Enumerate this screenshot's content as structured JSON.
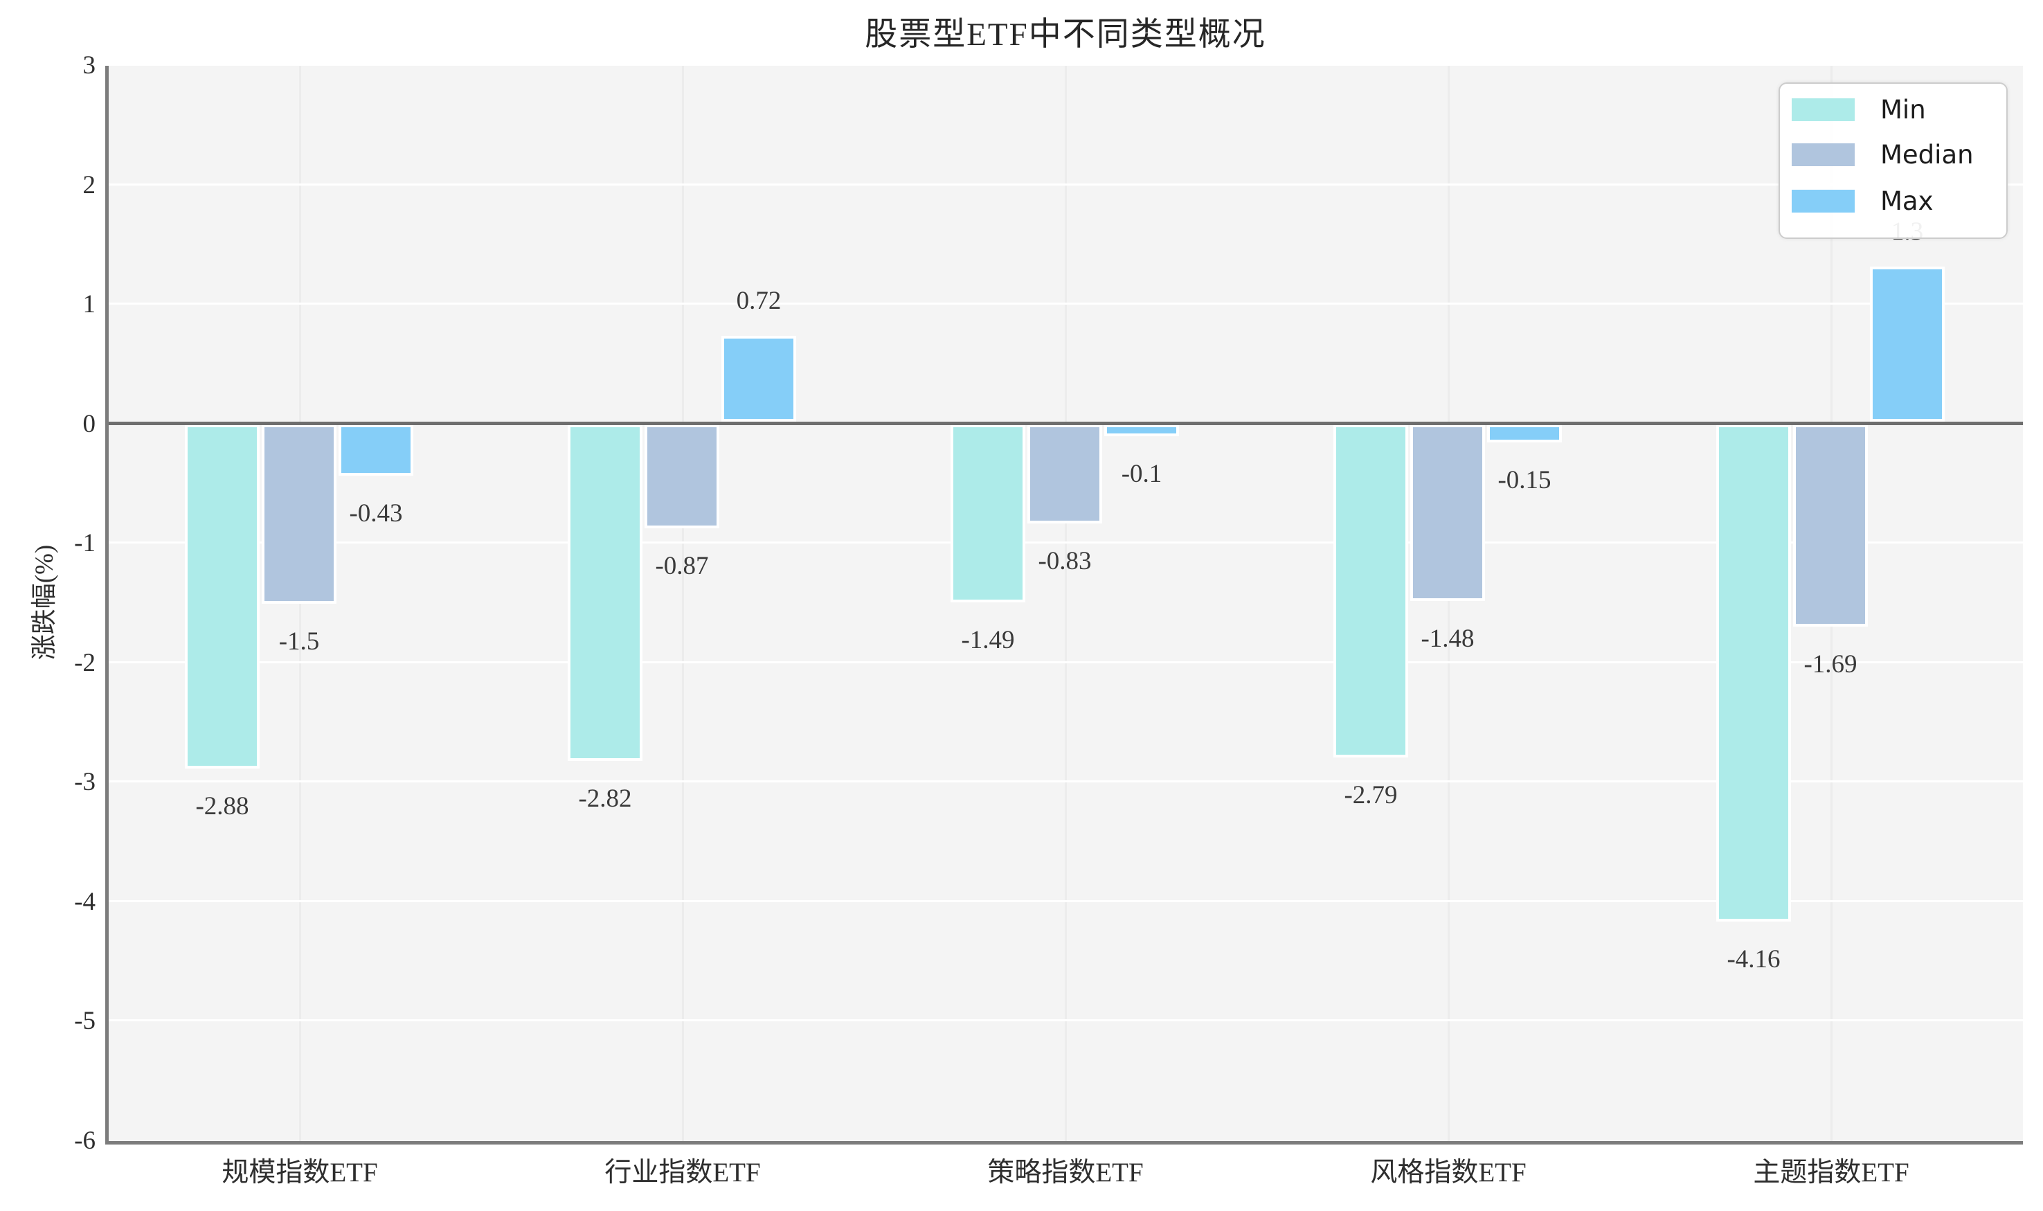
{
  "chart_data": {
    "type": "bar",
    "title": "股票型ETF中不同类型概况",
    "xlabel": "",
    "ylabel": "涨跌幅(%)",
    "categories": [
      "规模指数ETF",
      "行业指数ETF",
      "策略指数ETF",
      "风格指数ETF",
      "主题指数ETF"
    ],
    "series": [
      {
        "name": "Min",
        "color": "#adebe9",
        "values": [
          -2.88,
          -2.82,
          -1.49,
          -2.79,
          -4.16
        ]
      },
      {
        "name": "Median",
        "color": "#b0c5de",
        "values": [
          -1.5,
          -0.87,
          -0.83,
          -1.48,
          -1.69
        ]
      },
      {
        "name": "Max",
        "color": "#85cef8",
        "values": [
          -0.43,
          0.72,
          -0.1,
          -0.15,
          1.3
        ]
      }
    ],
    "ylim": [
      -6,
      3
    ],
    "yticks": [
      "3",
      "2",
      "1",
      "0",
      "-1",
      "-2",
      "-3",
      "-4",
      "-5",
      "-6"
    ],
    "grid": true,
    "legend_position": "upper right",
    "plot_background": "#f4f4f4",
    "zero_line_color": "#6e6e6e"
  }
}
